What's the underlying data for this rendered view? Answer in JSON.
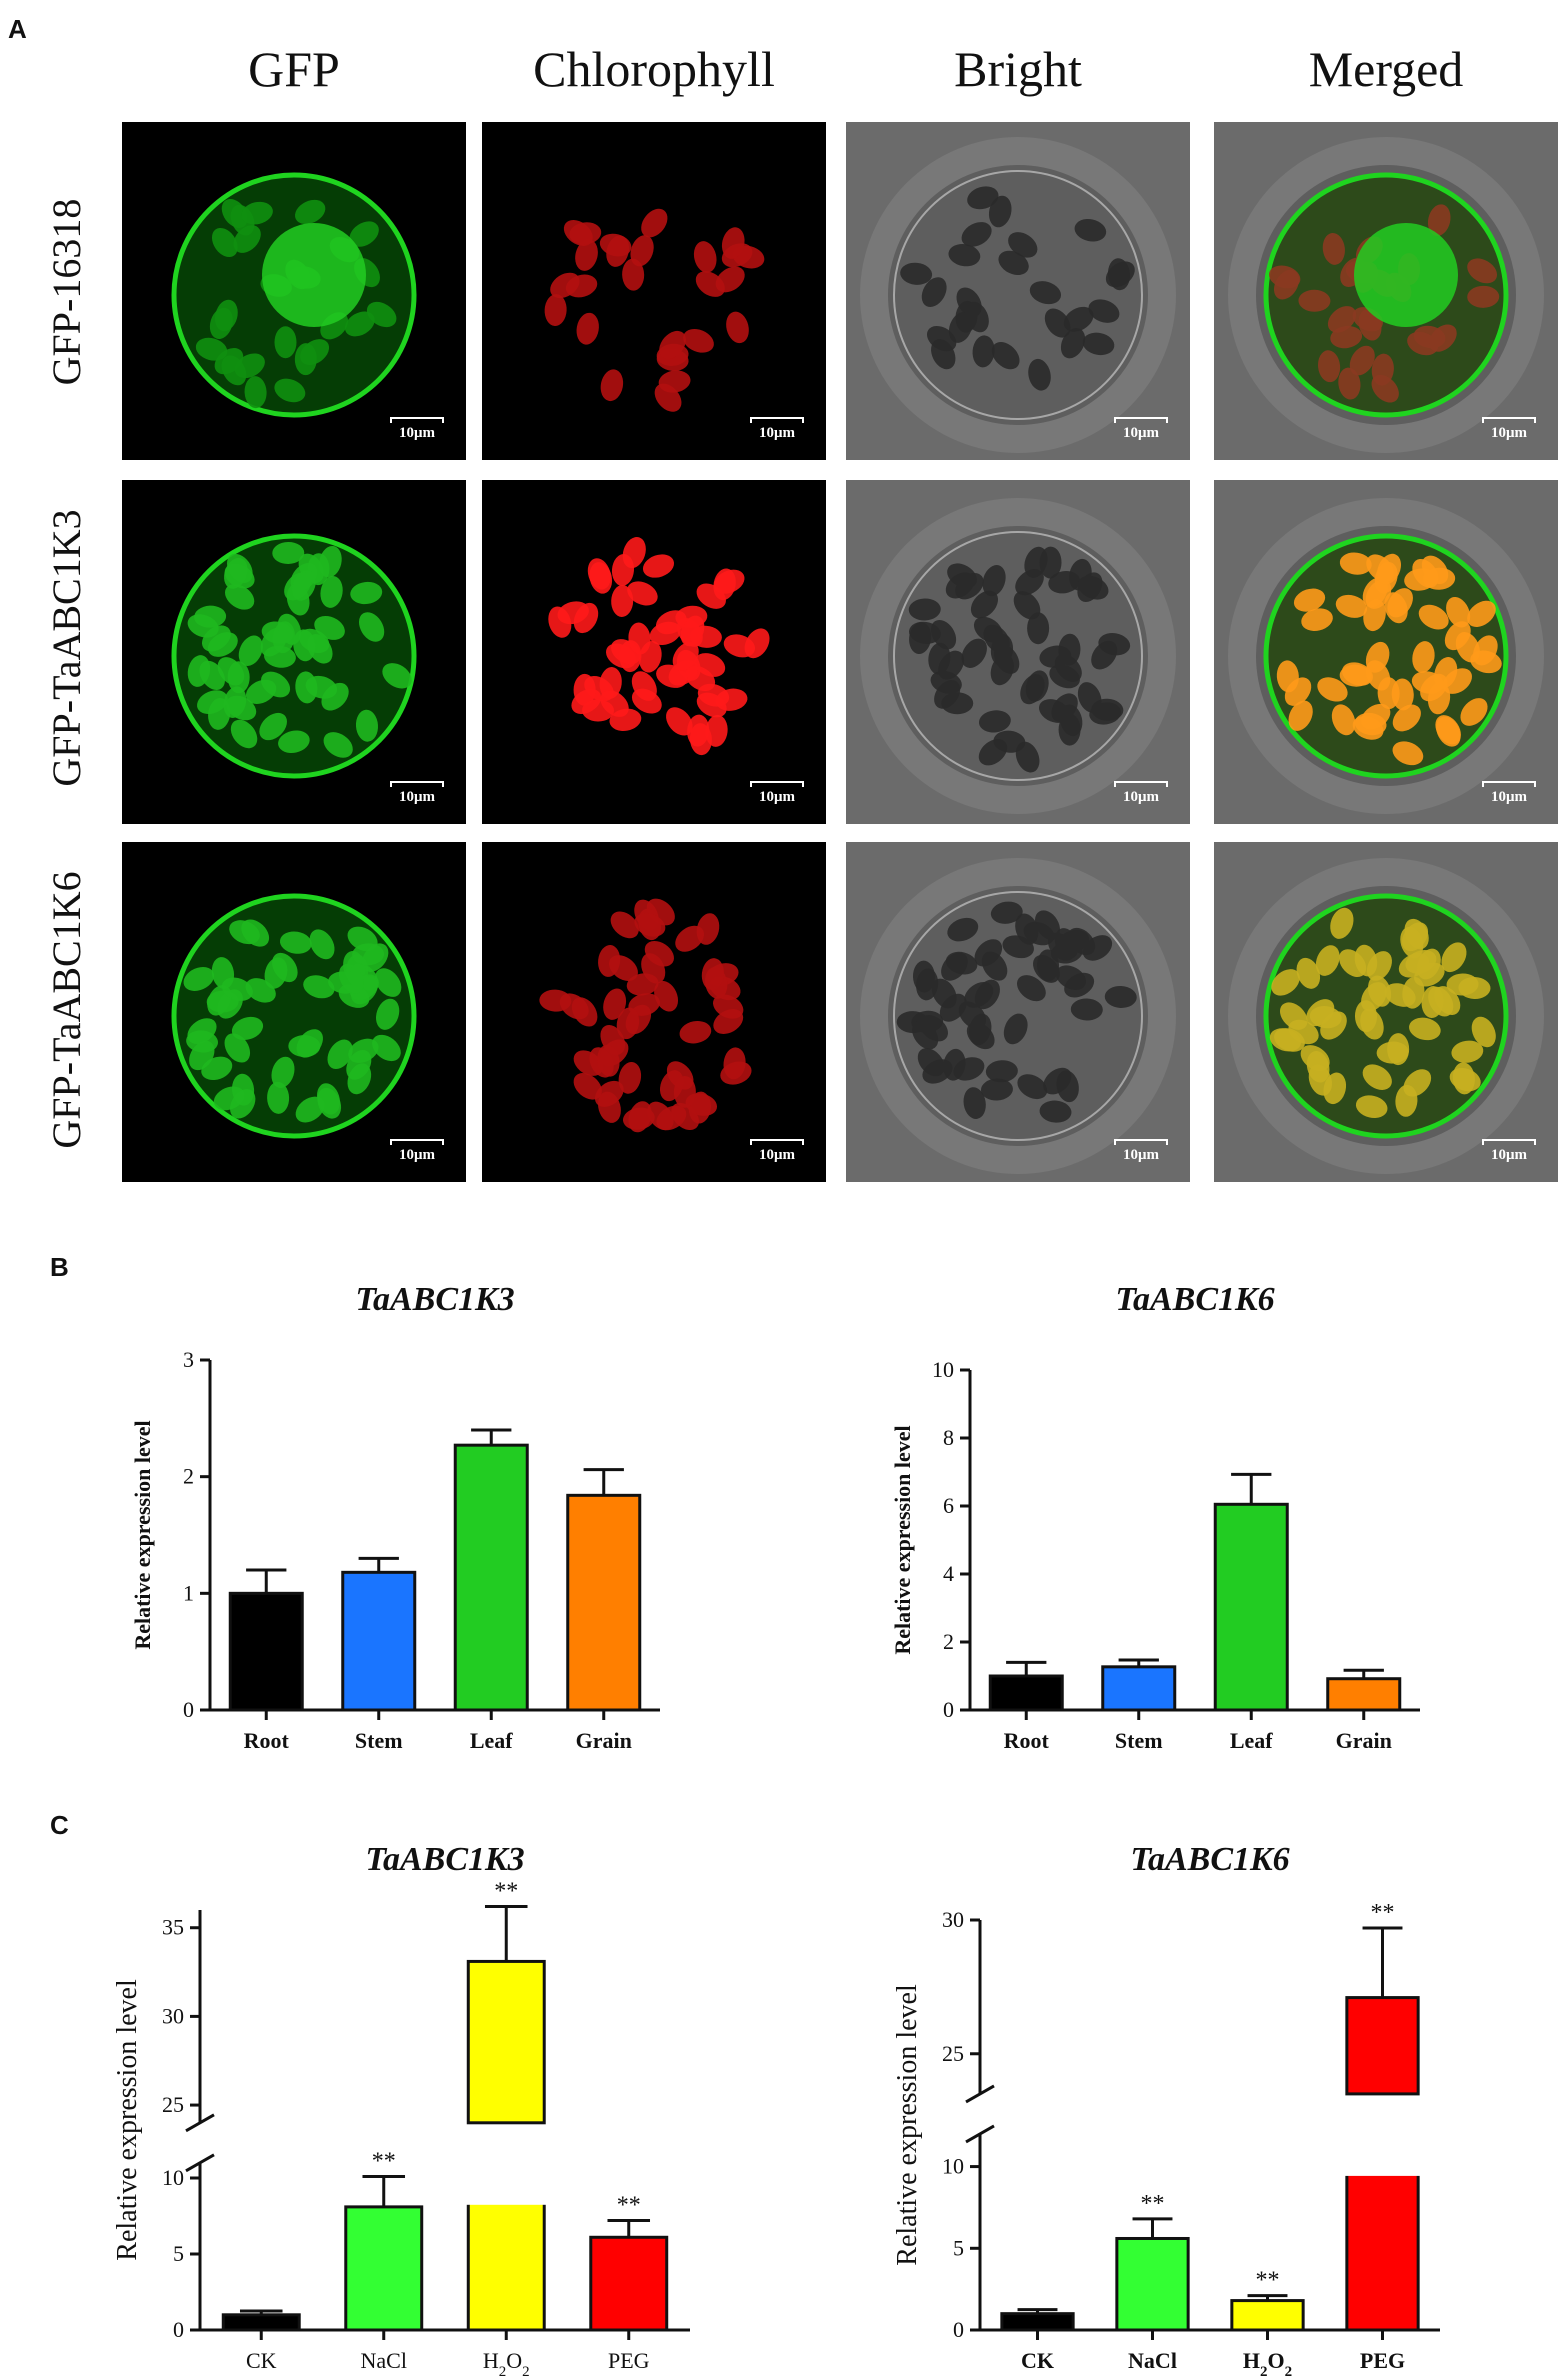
{
  "panel_a": {
    "letter": "A",
    "columns": [
      "GFP",
      "Chlorophyll",
      "Bright",
      "Merged"
    ],
    "rows": [
      "GFP-16318",
      "GFP-TaABC1K3",
      "GFP-TaABC1K6"
    ],
    "scale_label": "10μm"
  },
  "panel_b": {
    "letter": "B"
  },
  "panel_c": {
    "letter": "C"
  },
  "chart_data": [
    {
      "type": "bar",
      "panel": "B",
      "title": "TaABC1K3",
      "ylabel": "Relative expression level",
      "categories": [
        "Root",
        "Stem",
        "Leaf",
        "Grain"
      ],
      "values": [
        1.0,
        1.18,
        2.27,
        1.84
      ],
      "errors": [
        0.2,
        0.12,
        0.13,
        0.22
      ],
      "colors": [
        "#000000",
        "#1a75ff",
        "#22cc22",
        "#ff7f00"
      ],
      "ylim": [
        0,
        3
      ],
      "yticks": [
        0,
        1,
        2,
        3
      ]
    },
    {
      "type": "bar",
      "panel": "B",
      "title": "TaABC1K6",
      "ylabel": "Relative expression level",
      "categories": [
        "Root",
        "Stem",
        "Leaf",
        "Grain"
      ],
      "values": [
        1.0,
        1.27,
        6.05,
        0.92
      ],
      "errors": [
        0.4,
        0.2,
        0.88,
        0.25
      ],
      "colors": [
        "#000000",
        "#1a75ff",
        "#22cc22",
        "#ff7f00"
      ],
      "ylim": [
        0,
        10
      ],
      "yticks": [
        0,
        2,
        4,
        6,
        8,
        10
      ]
    },
    {
      "type": "bar",
      "panel": "C",
      "title": "TaABC1K3",
      "ylabel": "Relative expression level",
      "categories": [
        "CK",
        "NaCl",
        "H2O2",
        "PEG"
      ],
      "values": [
        1.0,
        8.1,
        33.1,
        6.1
      ],
      "errors": [
        0.25,
        2.0,
        3.1,
        1.1
      ],
      "significance": [
        "",
        "**",
        "**",
        "**"
      ],
      "colors": [
        "#000000",
        "#33ff33",
        "#ffff00",
        "#ff0000"
      ],
      "yaxis_break": [
        11,
        24
      ],
      "ylim": [
        0,
        36
      ],
      "yticks": [
        0,
        5,
        10,
        25,
        30,
        35
      ]
    },
    {
      "type": "bar",
      "panel": "C",
      "title": "TaABC1K6",
      "ylabel": "Relative expression level",
      "categories": [
        "CK",
        "NaCl",
        "H2O2",
        "PEG"
      ],
      "values": [
        1.0,
        5.6,
        1.8,
        27.1
      ],
      "errors": [
        0.25,
        1.2,
        0.3,
        2.6
      ],
      "significance": [
        "",
        "**",
        "**",
        "**"
      ],
      "colors": [
        "#000000",
        "#33ff33",
        "#ffff00",
        "#ff0000"
      ],
      "yaxis_break": [
        12,
        23.5
      ],
      "ylim": [
        0,
        30
      ],
      "yticks": [
        0,
        5,
        10,
        25,
        30
      ]
    }
  ]
}
